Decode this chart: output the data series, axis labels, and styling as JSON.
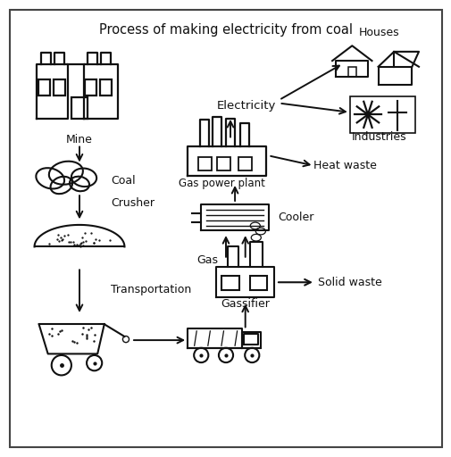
{
  "title": "Process of making electricity from coal",
  "title_fontsize": 10.5,
  "bg_color": "#ffffff",
  "border_color": "#444444",
  "arrow_color": "#111111",
  "text_color": "#111111",
  "sketch_color": "#111111",
  "labels": {
    "mine": "Mine",
    "coal": "Coal",
    "crusher": "Crusher",
    "transportation": "Transportation",
    "gassifier": "Gassifier",
    "gas": "Gas",
    "cooler": "Cooler",
    "solid_waste": "Solid waste",
    "gas_power_plant": "Gas power plant",
    "heat_waste": "Heat waste",
    "electricity": "Electricity",
    "houses": "Houses",
    "industries": "Industries"
  },
  "figsize": [
    5.06,
    5.12
  ],
  "dpi": 100
}
